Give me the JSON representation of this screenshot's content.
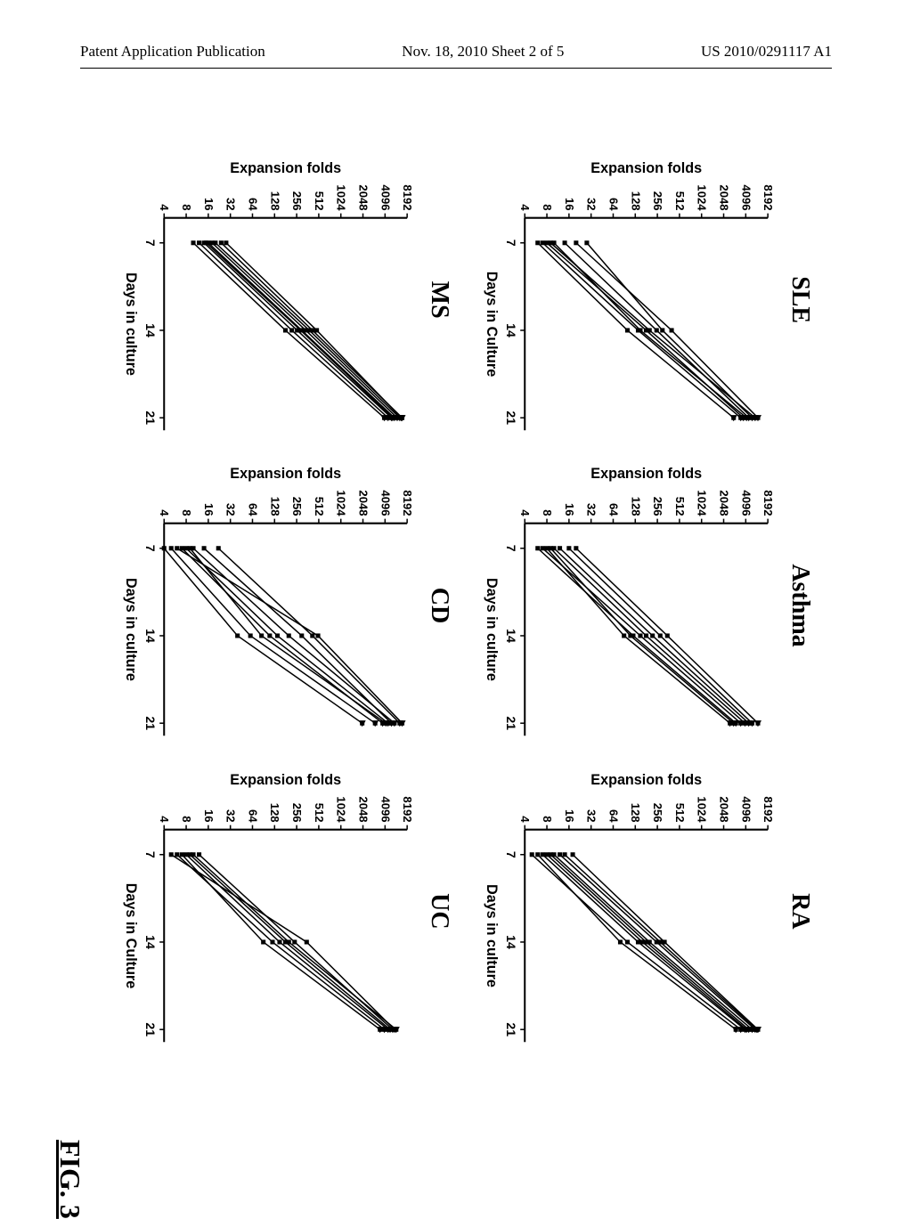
{
  "header": {
    "left": "Patent Application Publication",
    "center": "Nov. 18, 2010  Sheet 2 of 5",
    "right": "US 2010/0291117 A1"
  },
  "figure_label": "FIG. 3",
  "chart_common": {
    "type": "line",
    "ylabel": "Expansion folds",
    "xlabel": "Days in culture",
    "xlabel_alt": "Days in Culture",
    "xticks": [
      7,
      14,
      21
    ],
    "yticks": [
      4,
      8,
      16,
      32,
      64,
      128,
      256,
      512,
      1024,
      2048,
      4096,
      8192
    ],
    "yscale": "log2",
    "line_color": "#000000",
    "marker": "square",
    "marker_size": 5,
    "line_width": 1.5,
    "axis_color": "#000000",
    "axis_width": 2,
    "background_color": "#ffffff",
    "title_fontsize": 28,
    "title_weight": "bold",
    "label_fontsize": 16,
    "tick_fontsize": 13
  },
  "panels": [
    {
      "title": "SLE",
      "xlabel_variant": "Days in Culture",
      "series": [
        [
          [
            7,
            8
          ],
          [
            14,
            180
          ],
          [
            21,
            3800
          ]
        ],
        [
          [
            7,
            10
          ],
          [
            14,
            150
          ],
          [
            21,
            4200
          ]
        ],
        [
          [
            7,
            20
          ],
          [
            14,
            400
          ],
          [
            21,
            6000
          ]
        ],
        [
          [
            7,
            7
          ],
          [
            14,
            140
          ],
          [
            21,
            3500
          ]
        ],
        [
          [
            7,
            28
          ],
          [
            14,
            300
          ],
          [
            21,
            5000
          ]
        ],
        [
          [
            7,
            6
          ],
          [
            14,
            100
          ],
          [
            21,
            2800
          ]
        ],
        [
          [
            7,
            14
          ],
          [
            14,
            250
          ],
          [
            21,
            4500
          ]
        ],
        [
          [
            7,
            9
          ],
          [
            14,
            200
          ],
          [
            21,
            5500
          ]
        ]
      ]
    },
    {
      "title": "Asthma",
      "xlabel_variant": "Days in culture",
      "series": [
        [
          [
            7,
            6
          ],
          [
            14,
            120
          ],
          [
            21,
            3000
          ]
        ],
        [
          [
            7,
            10
          ],
          [
            14,
            180
          ],
          [
            21,
            4000
          ]
        ],
        [
          [
            7,
            16
          ],
          [
            14,
            280
          ],
          [
            21,
            5000
          ]
        ],
        [
          [
            7,
            8
          ],
          [
            14,
            90
          ],
          [
            21,
            2500
          ]
        ],
        [
          [
            7,
            12
          ],
          [
            14,
            220
          ],
          [
            21,
            4500
          ]
        ],
        [
          [
            7,
            7
          ],
          [
            14,
            150
          ],
          [
            21,
            3500
          ]
        ],
        [
          [
            7,
            20
          ],
          [
            14,
            350
          ],
          [
            21,
            6000
          ]
        ],
        [
          [
            7,
            9
          ],
          [
            14,
            110
          ],
          [
            21,
            2800
          ]
        ]
      ]
    },
    {
      "title": "RA",
      "xlabel_variant": "Days in culture",
      "series": [
        [
          [
            7,
            5
          ],
          [
            14,
            100
          ],
          [
            21,
            3500
          ]
        ],
        [
          [
            7,
            8
          ],
          [
            14,
            160
          ],
          [
            21,
            4200
          ]
        ],
        [
          [
            7,
            12
          ],
          [
            14,
            250
          ],
          [
            21,
            5500
          ]
        ],
        [
          [
            7,
            6
          ],
          [
            14,
            80
          ],
          [
            21,
            3000
          ]
        ],
        [
          [
            7,
            18
          ],
          [
            14,
            320
          ],
          [
            21,
            6000
          ]
        ],
        [
          [
            7,
            7
          ],
          [
            14,
            140
          ],
          [
            21,
            4000
          ]
        ],
        [
          [
            7,
            10
          ],
          [
            14,
            200
          ],
          [
            21,
            5000
          ]
        ],
        [
          [
            7,
            14
          ],
          [
            14,
            280
          ],
          [
            21,
            5800
          ]
        ],
        [
          [
            7,
            9
          ],
          [
            14,
            180
          ],
          [
            21,
            4500
          ]
        ]
      ]
    },
    {
      "title": "MS",
      "xlabel_variant": "Days in culture",
      "series": [
        [
          [
            7,
            12
          ],
          [
            14,
            220
          ],
          [
            21,
            4500
          ]
        ],
        [
          [
            7,
            16
          ],
          [
            14,
            300
          ],
          [
            21,
            5500
          ]
        ],
        [
          [
            7,
            20
          ],
          [
            14,
            380
          ],
          [
            21,
            6500
          ]
        ],
        [
          [
            7,
            14
          ],
          [
            14,
            260
          ],
          [
            21,
            5000
          ]
        ],
        [
          [
            7,
            24
          ],
          [
            14,
            420
          ],
          [
            21,
            7000
          ]
        ],
        [
          [
            7,
            10
          ],
          [
            14,
            180
          ],
          [
            21,
            4000
          ]
        ],
        [
          [
            7,
            18
          ],
          [
            14,
            340
          ],
          [
            21,
            6000
          ]
        ],
        [
          [
            7,
            28
          ],
          [
            14,
            480
          ],
          [
            21,
            6800
          ]
        ],
        [
          [
            7,
            15
          ],
          [
            14,
            290
          ],
          [
            21,
            5200
          ]
        ]
      ]
    },
    {
      "title": "CD",
      "xlabel_variant": "Days in culture",
      "series": [
        [
          [
            7,
            4
          ],
          [
            14,
            40
          ],
          [
            21,
            2000
          ]
        ],
        [
          [
            7,
            6
          ],
          [
            14,
            500
          ],
          [
            21,
            7000
          ]
        ],
        [
          [
            7,
            8
          ],
          [
            14,
            140
          ],
          [
            21,
            4500
          ]
        ],
        [
          [
            7,
            5
          ],
          [
            14,
            60
          ],
          [
            21,
            3000
          ]
        ],
        [
          [
            7,
            10
          ],
          [
            14,
            200
          ],
          [
            21,
            5500
          ]
        ],
        [
          [
            7,
            14
          ],
          [
            14,
            300
          ],
          [
            21,
            5000
          ]
        ],
        [
          [
            7,
            7
          ],
          [
            14,
            110
          ],
          [
            21,
            3800
          ]
        ],
        [
          [
            7,
            22
          ],
          [
            14,
            420
          ],
          [
            21,
            6500
          ]
        ],
        [
          [
            7,
            9
          ],
          [
            14,
            85
          ],
          [
            21,
            4200
          ]
        ]
      ]
    },
    {
      "title": "UC",
      "xlabel_variant": "Days in Culture",
      "series": [
        [
          [
            7,
            5
          ],
          [
            14,
            350
          ],
          [
            21,
            5500
          ]
        ],
        [
          [
            7,
            8
          ],
          [
            14,
            150
          ],
          [
            21,
            4500
          ]
        ],
        [
          [
            7,
            10
          ],
          [
            14,
            200
          ],
          [
            21,
            5800
          ]
        ],
        [
          [
            7,
            6
          ],
          [
            14,
            120
          ],
          [
            21,
            4000
          ]
        ],
        [
          [
            7,
            7
          ],
          [
            14,
            90
          ],
          [
            21,
            3500
          ]
        ],
        [
          [
            7,
            12
          ],
          [
            14,
            240
          ],
          [
            21,
            5200
          ]
        ],
        [
          [
            7,
            9
          ],
          [
            14,
            180
          ],
          [
            21,
            4800
          ]
        ]
      ]
    }
  ]
}
